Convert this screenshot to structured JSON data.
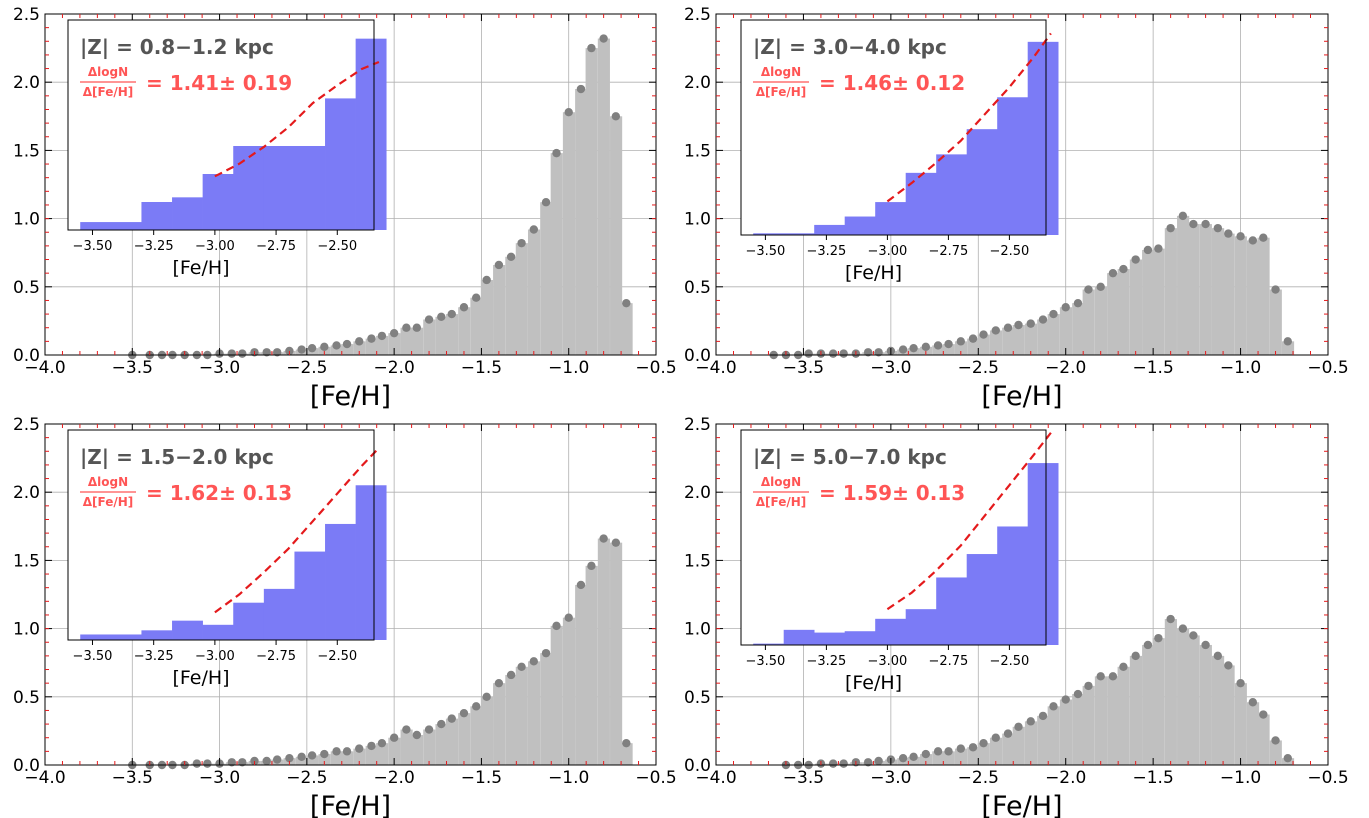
{
  "figure": {
    "colors": {
      "hist_fill": "#c0c0c0",
      "marker": "#808080",
      "grid": "#b0b0b0",
      "inset_fill": "#7b7bf6",
      "fit_line": "#e41a1c",
      "label_dark": "#555555",
      "label_red": "#ff5555",
      "minor_tick": "#e41a1c"
    }
  },
  "chart_data": [
    {
      "type": "bar",
      "xlabel": "[Fe/H]",
      "ylabel": "",
      "xlim": [
        -4.0,
        -0.5
      ],
      "ylim": [
        0.0,
        2.5
      ],
      "xticks": [
        "−4.0",
        "−3.5",
        "−3.0",
        "−2.5",
        "−2.0",
        "−1.5",
        "−1.0",
        "−0.5"
      ],
      "yticks": [
        "0.0",
        "0.5",
        "1.0",
        "1.5",
        "2.0",
        "2.5"
      ],
      "grid": true,
      "series": [
        {
          "x": [
            -3.5,
            -3.4,
            -3.33,
            -3.27,
            -3.2,
            -3.13,
            -3.07,
            -3.0,
            -2.93,
            -2.87,
            -2.8,
            -2.73,
            -2.67,
            -2.6,
            -2.53,
            -2.47,
            -2.4,
            -2.33,
            -2.27,
            -2.2,
            -2.13,
            -2.07,
            -2.0,
            -1.93,
            -1.87,
            -1.8,
            -1.73,
            -1.67,
            -1.6,
            -1.53,
            -1.47,
            -1.4,
            -1.33,
            -1.27,
            -1.2,
            -1.13,
            -1.07,
            -1.0,
            -0.93,
            -0.87,
            -0.8,
            -0.73,
            -0.67
          ],
          "values": [
            0.0,
            0.0,
            0.0,
            0.0,
            0.0,
            0.0,
            0.0,
            0.01,
            0.01,
            0.01,
            0.02,
            0.02,
            0.02,
            0.03,
            0.04,
            0.05,
            0.06,
            0.07,
            0.08,
            0.1,
            0.12,
            0.14,
            0.16,
            0.2,
            0.2,
            0.26,
            0.28,
            0.3,
            0.35,
            0.42,
            0.55,
            0.66,
            0.72,
            0.82,
            0.92,
            1.12,
            1.48,
            1.78,
            1.95,
            2.25,
            2.32,
            1.75,
            0.38
          ]
        }
      ],
      "inset": {
        "type": "bar",
        "xlabel": "[Fe/H]",
        "xlim": [
          -3.6,
          -2.35
        ],
        "xticks": [
          "−3.50",
          "−3.25",
          "−3.00",
          "−2.75",
          "−2.50"
        ],
        "bins": [
          -3.55,
          -3.3,
          -3.175,
          -3.05,
          -2.925,
          -2.8,
          -2.55,
          -2.425,
          -2.3
        ],
        "values": [
          0.17,
          0.6,
          0.7,
          1.2,
          1.8,
          1.8,
          2.82,
          4.1
        ],
        "fit_x": [
          -3.0,
          -2.9,
          -2.8,
          -2.7,
          -2.6,
          -2.5,
          -2.4,
          -2.33
        ],
        "fit_y": [
          1.15,
          1.42,
          1.78,
          2.2,
          2.72,
          3.1,
          3.45,
          3.6
        ],
        "label": "|Z| = 0.8−1.2 kpc",
        "frac_num": "ΔlogN",
        "frac_den": "Δ[Fe/H]",
        "slope": "= 1.41± 0.19"
      }
    },
    {
      "type": "bar",
      "xlabel": "[Fe/H]",
      "ylabel": "",
      "xlim": [
        -4.0,
        -0.5
      ],
      "ylim": [
        0.0,
        2.5
      ],
      "xticks": [
        "−4.0",
        "−3.5",
        "−3.0",
        "−2.5",
        "−2.0",
        "−1.5",
        "−1.0",
        "−0.5"
      ],
      "yticks": [
        "0.0",
        "0.5",
        "1.0",
        "1.5",
        "2.0",
        "2.5"
      ],
      "grid": true,
      "series": [
        {
          "x": [
            -3.67,
            -3.6,
            -3.53,
            -3.47,
            -3.4,
            -3.33,
            -3.27,
            -3.2,
            -3.13,
            -3.07,
            -3.0,
            -2.93,
            -2.87,
            -2.8,
            -2.73,
            -2.67,
            -2.6,
            -2.53,
            -2.47,
            -2.4,
            -2.33,
            -2.27,
            -2.2,
            -2.13,
            -2.07,
            -2.0,
            -1.93,
            -1.87,
            -1.8,
            -1.73,
            -1.67,
            -1.6,
            -1.53,
            -1.47,
            -1.4,
            -1.33,
            -1.27,
            -1.2,
            -1.13,
            -1.07,
            -1.0,
            -0.93,
            -0.87,
            -0.8,
            -0.73
          ],
          "values": [
            0.0,
            0.0,
            0.0,
            0.01,
            0.01,
            0.01,
            0.01,
            0.01,
            0.02,
            0.02,
            0.03,
            0.04,
            0.05,
            0.06,
            0.07,
            0.08,
            0.1,
            0.12,
            0.15,
            0.18,
            0.2,
            0.22,
            0.23,
            0.26,
            0.3,
            0.35,
            0.38,
            0.48,
            0.5,
            0.6,
            0.63,
            0.7,
            0.77,
            0.78,
            0.93,
            1.02,
            0.96,
            0.96,
            0.93,
            0.89,
            0.87,
            0.84,
            0.86,
            0.48,
            0.1
          ]
        }
      ],
      "inset": {
        "type": "bar",
        "xlabel": "[Fe/H]",
        "xlim": [
          -3.6,
          -2.35
        ],
        "xticks": [
          "−3.50",
          "−3.25",
          "−3.00",
          "−2.75",
          "−2.50"
        ],
        "bins": [
          -3.55,
          -3.3,
          -3.175,
          -3.05,
          -2.925,
          -2.8,
          -2.675,
          -2.55,
          -2.425,
          -2.3
        ],
        "values": [
          0.05,
          0.3,
          0.55,
          0.98,
          1.85,
          2.4,
          3.15,
          4.1,
          5.75
        ],
        "fit_x": [
          -3.0,
          -2.9,
          -2.8,
          -2.7,
          -2.6,
          -2.5,
          -2.4,
          -2.33
        ],
        "fit_y": [
          1.0,
          1.55,
          2.15,
          2.8,
          3.6,
          4.4,
          5.3,
          6.0
        ],
        "label": "|Z| = 3.0−4.0 kpc",
        "frac_num": "ΔlogN",
        "frac_den": "Δ[Fe/H]",
        "slope": "= 1.46± 0.12"
      }
    },
    {
      "type": "bar",
      "xlabel": "[Fe/H]",
      "ylabel": "",
      "xlim": [
        -4.0,
        -0.5
      ],
      "ylim": [
        0.0,
        2.5
      ],
      "xticks": [
        "−4.0",
        "−3.5",
        "−3.0",
        "−2.5",
        "−2.0",
        "−1.5",
        "−1.0",
        "−0.5"
      ],
      "yticks": [
        "0.0",
        "0.5",
        "1.0",
        "1.5",
        "2.0",
        "2.5"
      ],
      "grid": true,
      "series": [
        {
          "x": [
            -3.5,
            -3.4,
            -3.33,
            -3.27,
            -3.2,
            -3.13,
            -3.07,
            -3.0,
            -2.93,
            -2.87,
            -2.8,
            -2.73,
            -2.67,
            -2.6,
            -2.53,
            -2.47,
            -2.4,
            -2.33,
            -2.27,
            -2.2,
            -2.13,
            -2.07,
            -2.0,
            -1.93,
            -1.87,
            -1.8,
            -1.73,
            -1.67,
            -1.6,
            -1.53,
            -1.47,
            -1.4,
            -1.33,
            -1.27,
            -1.2,
            -1.13,
            -1.07,
            -1.0,
            -0.93,
            -0.87,
            -0.8,
            -0.73,
            -0.67
          ],
          "values": [
            0.0,
            0.0,
            0.0,
            0.0,
            0.0,
            0.01,
            0.01,
            0.01,
            0.02,
            0.02,
            0.03,
            0.03,
            0.04,
            0.05,
            0.06,
            0.07,
            0.08,
            0.1,
            0.1,
            0.12,
            0.14,
            0.16,
            0.2,
            0.26,
            0.22,
            0.26,
            0.3,
            0.34,
            0.38,
            0.43,
            0.5,
            0.6,
            0.66,
            0.72,
            0.76,
            0.82,
            1.02,
            1.08,
            1.32,
            1.46,
            1.66,
            1.63,
            0.16
          ]
        }
      ],
      "inset": {
        "type": "bar",
        "xlabel": "[Fe/H]",
        "xlim": [
          -3.6,
          -2.35
        ],
        "xticks": [
          "−3.50",
          "−3.25",
          "−3.00",
          "−2.75",
          "−2.50"
        ],
        "bins": [
          -3.55,
          -3.3,
          -3.175,
          -3.05,
          -2.925,
          -2.8,
          -2.675,
          -2.55,
          -2.425,
          -2.3
        ],
        "values": [
          0.2,
          0.35,
          0.7,
          0.55,
          1.35,
          1.85,
          3.2,
          4.2,
          5.6
        ],
        "fit_x": [
          -3.0,
          -2.9,
          -2.8,
          -2.7,
          -2.6,
          -2.5,
          -2.4,
          -2.33
        ],
        "fit_y": [
          1.0,
          1.65,
          2.45,
          3.3,
          4.3,
          5.3,
          6.3,
          6.95
        ],
        "label": "|Z| = 1.5−2.0 kpc",
        "frac_num": "ΔlogN",
        "frac_den": "Δ[Fe/H]",
        "slope": "= 1.62± 0.13"
      }
    },
    {
      "type": "bar",
      "xlabel": "[Fe/H]",
      "ylabel": "",
      "xlim": [
        -4.0,
        -0.5
      ],
      "ylim": [
        0.0,
        2.5
      ],
      "xticks": [
        "−4.0",
        "−3.5",
        "−3.0",
        "−2.5",
        "−2.0",
        "−1.5",
        "−1.0",
        "−0.5"
      ],
      "yticks": [
        "0.0",
        "0.5",
        "1.0",
        "1.5",
        "2.0",
        "2.5"
      ],
      "grid": true,
      "series": [
        {
          "x": [
            -3.6,
            -3.53,
            -3.47,
            -3.4,
            -3.33,
            -3.27,
            -3.2,
            -3.13,
            -3.07,
            -3.0,
            -2.93,
            -2.87,
            -2.8,
            -2.73,
            -2.67,
            -2.6,
            -2.53,
            -2.47,
            -2.4,
            -2.33,
            -2.27,
            -2.2,
            -2.13,
            -2.07,
            -2.0,
            -1.93,
            -1.87,
            -1.8,
            -1.73,
            -1.67,
            -1.6,
            -1.53,
            -1.47,
            -1.4,
            -1.33,
            -1.27,
            -1.2,
            -1.13,
            -1.07,
            -1.0,
            -0.93,
            -0.87,
            -0.8,
            -0.73
          ],
          "values": [
            0.0,
            0.0,
            0.0,
            0.01,
            0.01,
            0.01,
            0.02,
            0.02,
            0.03,
            0.04,
            0.05,
            0.06,
            0.08,
            0.1,
            0.1,
            0.12,
            0.13,
            0.16,
            0.2,
            0.23,
            0.28,
            0.32,
            0.36,
            0.43,
            0.48,
            0.52,
            0.58,
            0.65,
            0.65,
            0.72,
            0.8,
            0.88,
            0.93,
            1.07,
            1.0,
            0.95,
            0.88,
            0.8,
            0.73,
            0.6,
            0.46,
            0.37,
            0.18,
            0.05
          ]
        }
      ],
      "inset": {
        "type": "bar",
        "xlabel": "[Fe/H]",
        "xlim": [
          -3.6,
          -2.35
        ],
        "xticks": [
          "−3.50",
          "−3.25",
          "−3.00",
          "−2.75",
          "−2.50"
        ],
        "bins": [
          -3.55,
          -3.425,
          -3.3,
          -3.175,
          -3.05,
          -2.925,
          -2.8,
          -2.675,
          -2.55,
          -2.425,
          -2.3
        ],
        "values": [
          0.05,
          0.55,
          0.45,
          0.5,
          0.95,
          1.3,
          2.45,
          3.3,
          4.3,
          6.6
        ],
        "fit_x": [
          -3.0,
          -2.9,
          -2.8,
          -2.7,
          -2.6,
          -2.5,
          -2.4,
          -2.33
        ],
        "fit_y": [
          1.3,
          1.9,
          2.7,
          3.6,
          4.7,
          5.8,
          6.9,
          7.7
        ],
        "label": "|Z| = 5.0−7.0 kpc",
        "frac_num": "ΔlogN",
        "frac_den": "Δ[Fe/H]",
        "slope": "= 1.59± 0.13"
      }
    }
  ]
}
